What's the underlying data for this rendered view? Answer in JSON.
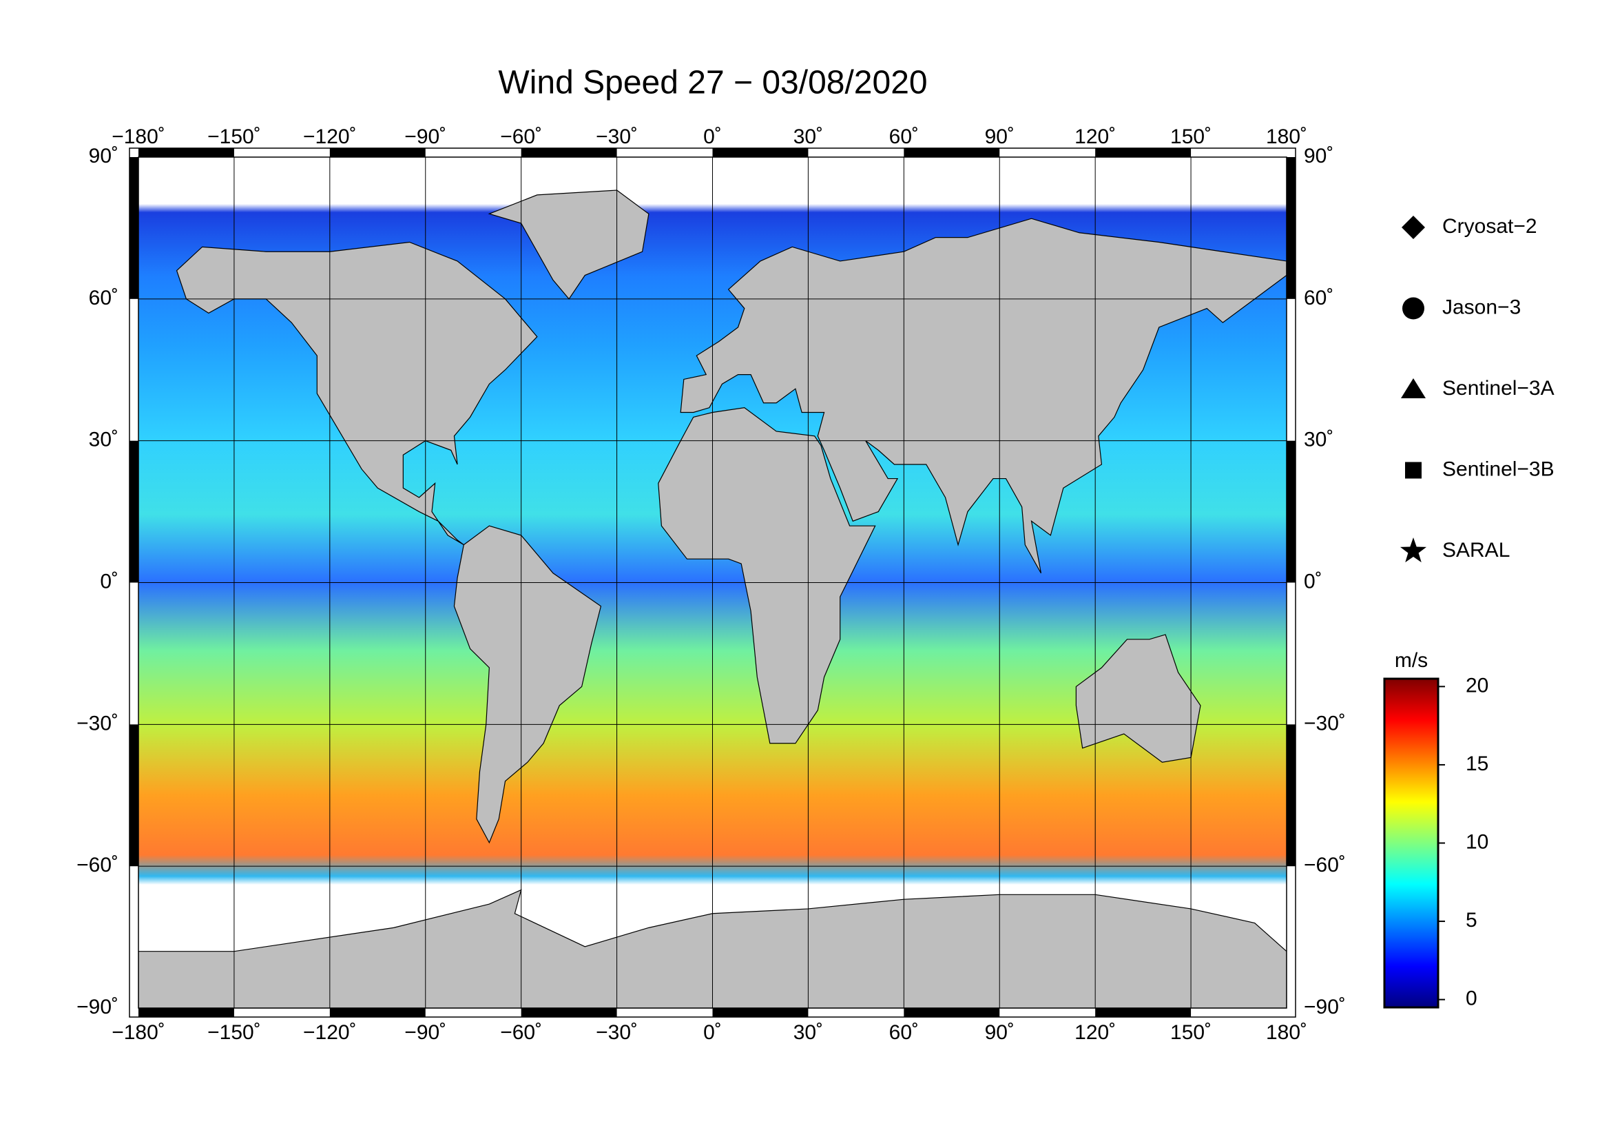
{
  "title": "Wind Speed 27 − 03/08/2020",
  "map": {
    "xlim": [
      -180,
      180
    ],
    "ylim": [
      -90,
      90
    ],
    "xticks": [
      {
        "value": -180,
        "label": "−180˚"
      },
      {
        "value": -150,
        "label": "−150˚"
      },
      {
        "value": -120,
        "label": "−120˚"
      },
      {
        "value": -90,
        "label": "−90˚"
      },
      {
        "value": -60,
        "label": "−60˚"
      },
      {
        "value": -30,
        "label": "−30˚"
      },
      {
        "value": 0,
        "label": "0˚"
      },
      {
        "value": 30,
        "label": "30˚"
      },
      {
        "value": 60,
        "label": "60˚"
      },
      {
        "value": 90,
        "label": "90˚"
      },
      {
        "value": 120,
        "label": "120˚"
      },
      {
        "value": 150,
        "label": "150˚"
      },
      {
        "value": 180,
        "label": "180˚"
      }
    ],
    "yticks": [
      {
        "value": 90,
        "label": "90˚"
      },
      {
        "value": 60,
        "label": "60˚"
      },
      {
        "value": 30,
        "label": "30˚"
      },
      {
        "value": 0,
        "label": "0˚"
      },
      {
        "value": -30,
        "label": "−30˚"
      },
      {
        "value": -60,
        "label": "−60˚"
      },
      {
        "value": -90,
        "label": "−90˚"
      }
    ],
    "grid": true
  },
  "legend": [
    {
      "name": "Cryosat−2",
      "marker": "diamond"
    },
    {
      "name": "Jason−3",
      "marker": "circle"
    },
    {
      "name": "Sentinel−3A",
      "marker": "triangle"
    },
    {
      "name": "Sentinel−3B",
      "marker": "square"
    },
    {
      "name": "SARAL",
      "marker": "star"
    }
  ],
  "colorbar": {
    "label": "m/s",
    "lim": [
      -0.5,
      20.5
    ],
    "ticks": [
      0,
      5,
      10,
      15,
      20
    ]
  }
}
